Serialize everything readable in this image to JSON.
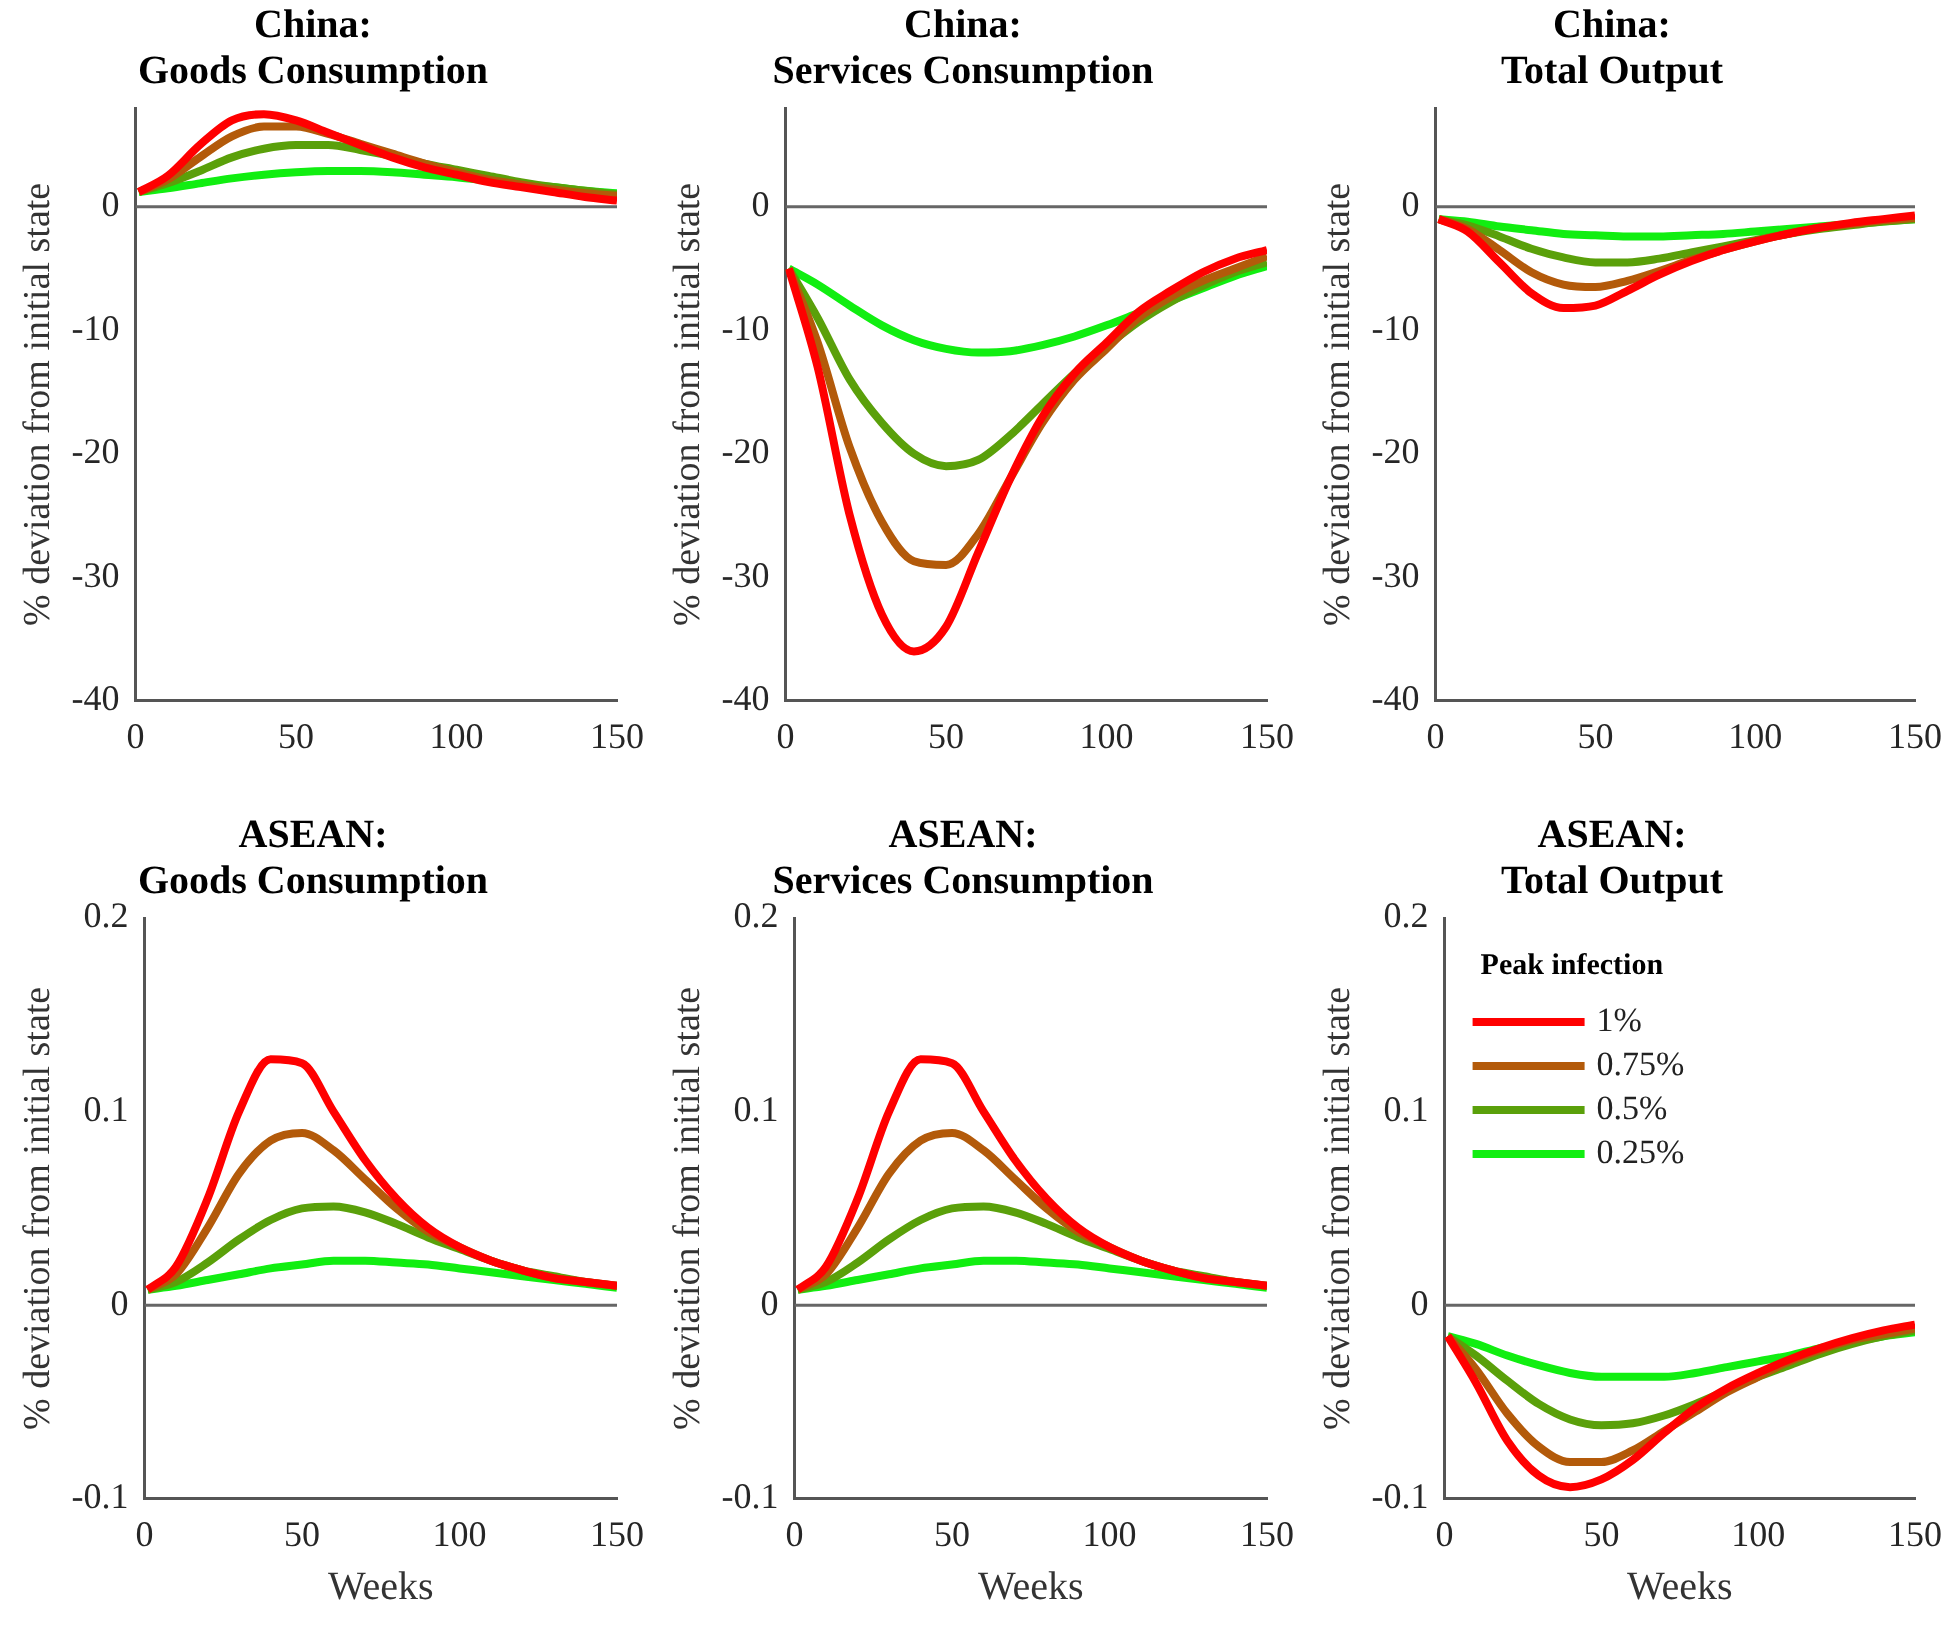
{
  "chart_data": [
    {
      "type": "line",
      "title": "China:\nGoods Consumption",
      "ylabel": "% deviation from initial state",
      "x": [
        1,
        10,
        20,
        30,
        40,
        50,
        60,
        70,
        80,
        90,
        100,
        110,
        120,
        130,
        140,
        150
      ],
      "xlim": [
        0,
        150
      ],
      "xticks": [
        0,
        50,
        100,
        150
      ],
      "ylim": [
        -40,
        8
      ],
      "yticks": [
        -40,
        -30,
        -20,
        -10,
        0
      ],
      "grid": false,
      "legend": false,
      "marker": "none",
      "ref_lines": [
        {
          "axis": "y",
          "value": 0,
          "color": "#666666"
        }
      ],
      "series": [
        {
          "color": "#ff0000",
          "values": [
            1.2,
            2.5,
            5,
            7,
            7.5,
            7,
            6,
            5,
            4,
            3.2,
            2.6,
            2,
            1.6,
            1.2,
            0.8,
            0.5
          ]
        },
        {
          "color": "#b35a0a",
          "values": [
            1.2,
            2.2,
            4,
            5.7,
            6.5,
            6.5,
            5.9,
            5.1,
            4.3,
            3.5,
            2.8,
            2.2,
            1.8,
            1.4,
            1.1,
            0.9
          ]
        },
        {
          "color": "#5aa00a",
          "values": [
            1.2,
            1.9,
            2.9,
            4,
            4.7,
            5,
            5,
            4.6,
            4.1,
            3.5,
            3,
            2.5,
            2,
            1.6,
            1.3,
            1
          ]
        },
        {
          "color": "#11ee11",
          "values": [
            1.2,
            1.5,
            1.9,
            2.3,
            2.6,
            2.8,
            2.9,
            2.9,
            2.8,
            2.6,
            2.4,
            2.1,
            1.8,
            1.6,
            1.3,
            1.1
          ]
        }
      ]
    },
    {
      "type": "line",
      "title": "China:\nServices Consumption",
      "ylabel": "% deviation from initial state",
      "x": [
        1,
        10,
        20,
        30,
        40,
        50,
        60,
        70,
        80,
        90,
        100,
        110,
        120,
        130,
        140,
        150
      ],
      "xlim": [
        0,
        150
      ],
      "xticks": [
        0,
        50,
        100,
        150
      ],
      "ylim": [
        -40,
        8
      ],
      "yticks": [
        -40,
        -30,
        -20,
        -10,
        0
      ],
      "grid": false,
      "legend": false,
      "marker": "none",
      "ref_lines": [
        {
          "axis": "y",
          "value": 0,
          "color": "#666666"
        }
      ],
      "series": [
        {
          "color": "#ff0000",
          "values": [
            -5,
            -13,
            -25,
            -33,
            -36,
            -34,
            -28,
            -22,
            -17,
            -13.5,
            -11,
            -8.5,
            -6.8,
            -5.3,
            -4.2,
            -3.5
          ]
        },
        {
          "color": "#b35a0a",
          "values": [
            -5,
            -11,
            -19.5,
            -25.5,
            -28.7,
            -29,
            -26.5,
            -22,
            -17.5,
            -14,
            -11.5,
            -9,
            -7.3,
            -6,
            -5,
            -4
          ]
        },
        {
          "color": "#5aa00a",
          "values": [
            -5,
            -9,
            -14,
            -17.5,
            -20,
            -21,
            -20.5,
            -18.5,
            -16,
            -13.5,
            -11.3,
            -9.3,
            -7.7,
            -6.4,
            -5.3,
            -4.5
          ]
        },
        {
          "color": "#11ee11",
          "values": [
            -5,
            -6.3,
            -8,
            -9.6,
            -10.8,
            -11.5,
            -11.8,
            -11.7,
            -11.2,
            -10.5,
            -9.6,
            -8.6,
            -7.6,
            -6.6,
            -5.6,
            -4.8
          ]
        }
      ]
    },
    {
      "type": "line",
      "title": "China:\nTotal Output",
      "ylabel": "% deviation from initial state",
      "x": [
        1,
        10,
        20,
        30,
        40,
        50,
        60,
        70,
        80,
        90,
        100,
        110,
        120,
        130,
        140,
        150
      ],
      "xlim": [
        0,
        150
      ],
      "xticks": [
        0,
        50,
        100,
        150
      ],
      "ylim": [
        -40,
        8
      ],
      "yticks": [
        -40,
        -30,
        -20,
        -10,
        0
      ],
      "grid": false,
      "legend": false,
      "marker": "none",
      "ref_lines": [
        {
          "axis": "y",
          "value": 0,
          "color": "#666666"
        }
      ],
      "series": [
        {
          "color": "#ff0000",
          "values": [
            -1,
            -2,
            -4.5,
            -7,
            -8.2,
            -8,
            -6.8,
            -5.5,
            -4.4,
            -3.5,
            -2.8,
            -2.2,
            -1.7,
            -1.3,
            -1,
            -0.7
          ]
        },
        {
          "color": "#b35a0a",
          "values": [
            -1,
            -1.8,
            -3.5,
            -5.3,
            -6.3,
            -6.5,
            -6,
            -5.2,
            -4.3,
            -3.5,
            -2.8,
            -2.2,
            -1.7,
            -1.4,
            -1.1,
            -0.9
          ]
        },
        {
          "color": "#5aa00a",
          "values": [
            -1,
            -1.5,
            -2.4,
            -3.4,
            -4.1,
            -4.5,
            -4.5,
            -4.2,
            -3.7,
            -3.2,
            -2.7,
            -2.2,
            -1.8,
            -1.5,
            -1.2,
            -1
          ]
        },
        {
          "color": "#11ee11",
          "values": [
            -1,
            -1.2,
            -1.6,
            -1.9,
            -2.2,
            -2.3,
            -2.4,
            -2.4,
            -2.3,
            -2.2,
            -2,
            -1.8,
            -1.6,
            -1.4,
            -1.2,
            -1
          ]
        }
      ]
    },
    {
      "type": "line",
      "title": "ASEAN:\nGoods Consumption",
      "xlabel": "Weeks",
      "ylabel": "% deviation from initial state",
      "x": [
        1,
        10,
        20,
        30,
        40,
        50,
        60,
        70,
        80,
        90,
        100,
        110,
        120,
        130,
        140,
        150
      ],
      "xlim": [
        0,
        150
      ],
      "xticks": [
        0,
        50,
        100,
        150
      ],
      "ylim": [
        -0.1,
        0.2
      ],
      "yticks": [
        -0.1,
        0,
        0.1,
        0.2
      ],
      "grid": false,
      "legend": false,
      "marker": "none",
      "ref_lines": [
        {
          "axis": "y",
          "value": 0,
          "color": "#666666"
        }
      ],
      "series": [
        {
          "color": "#ff0000",
          "values": [
            0.008,
            0.02,
            0.055,
            0.1,
            0.127,
            0.125,
            0.1,
            0.075,
            0.055,
            0.04,
            0.03,
            0.023,
            0.018,
            0.014,
            0.012,
            0.01
          ]
        },
        {
          "color": "#b35a0a",
          "values": [
            0.008,
            0.016,
            0.04,
            0.068,
            0.085,
            0.089,
            0.08,
            0.065,
            0.05,
            0.038,
            0.03,
            0.023,
            0.018,
            0.014,
            0.012,
            0.01
          ]
        },
        {
          "color": "#5aa00a",
          "values": [
            0.008,
            0.012,
            0.022,
            0.034,
            0.044,
            0.05,
            0.051,
            0.048,
            0.042,
            0.035,
            0.029,
            0.023,
            0.018,
            0.015,
            0.012,
            0.01
          ]
        },
        {
          "color": "#11ee11",
          "values": [
            0.008,
            0.01,
            0.013,
            0.016,
            0.019,
            0.021,
            0.023,
            0.023,
            0.022,
            0.021,
            0.019,
            0.017,
            0.015,
            0.013,
            0.011,
            0.009
          ]
        }
      ]
    },
    {
      "type": "line",
      "title": "ASEAN:\nServices Consumption",
      "xlabel": "Weeks",
      "ylabel": "% deviation from initial state",
      "x": [
        1,
        10,
        20,
        30,
        40,
        50,
        60,
        70,
        80,
        90,
        100,
        110,
        120,
        130,
        140,
        150
      ],
      "xlim": [
        0,
        150
      ],
      "xticks": [
        0,
        50,
        100,
        150
      ],
      "ylim": [
        -0.1,
        0.2
      ],
      "yticks": [
        -0.1,
        0,
        0.1,
        0.2
      ],
      "grid": false,
      "legend": false,
      "marker": "none",
      "ref_lines": [
        {
          "axis": "y",
          "value": 0,
          "color": "#666666"
        }
      ],
      "series": [
        {
          "color": "#ff0000",
          "values": [
            0.008,
            0.02,
            0.055,
            0.1,
            0.127,
            0.125,
            0.1,
            0.075,
            0.055,
            0.04,
            0.03,
            0.023,
            0.018,
            0.014,
            0.012,
            0.01
          ]
        },
        {
          "color": "#b35a0a",
          "values": [
            0.008,
            0.016,
            0.04,
            0.068,
            0.085,
            0.089,
            0.08,
            0.065,
            0.05,
            0.038,
            0.03,
            0.023,
            0.018,
            0.014,
            0.012,
            0.01
          ]
        },
        {
          "color": "#5aa00a",
          "values": [
            0.008,
            0.012,
            0.022,
            0.034,
            0.044,
            0.05,
            0.051,
            0.048,
            0.042,
            0.035,
            0.029,
            0.023,
            0.018,
            0.015,
            0.012,
            0.01
          ]
        },
        {
          "color": "#11ee11",
          "values": [
            0.008,
            0.01,
            0.013,
            0.016,
            0.019,
            0.021,
            0.023,
            0.023,
            0.022,
            0.021,
            0.019,
            0.017,
            0.015,
            0.013,
            0.011,
            0.009
          ]
        }
      ]
    },
    {
      "type": "line",
      "title": "ASEAN:\nTotal Output",
      "xlabel": "Weeks",
      "ylabel": "% deviation from initial state",
      "legend_title": "Peak infection",
      "x": [
        1,
        10,
        20,
        30,
        40,
        50,
        60,
        70,
        80,
        90,
        100,
        110,
        120,
        130,
        140,
        150
      ],
      "xlim": [
        0,
        150
      ],
      "xticks": [
        0,
        50,
        100,
        150
      ],
      "ylim": [
        -0.1,
        0.2
      ],
      "yticks": [
        -0.1,
        0,
        0.1,
        0.2
      ],
      "grid": false,
      "legend": "top left",
      "marker": "none",
      "ref_lines": [
        {
          "axis": "y",
          "value": 0,
          "color": "#666666"
        }
      ],
      "series": [
        {
          "name": "1%",
          "color": "#ff0000",
          "values": [
            -0.016,
            -0.04,
            -0.07,
            -0.088,
            -0.094,
            -0.09,
            -0.08,
            -0.066,
            -0.053,
            -0.043,
            -0.035,
            -0.028,
            -0.022,
            -0.017,
            -0.013,
            -0.01
          ]
        },
        {
          "name": "0.75%",
          "color": "#b35a0a",
          "values": [
            -0.016,
            -0.033,
            -0.056,
            -0.073,
            -0.081,
            -0.081,
            -0.075,
            -0.065,
            -0.055,
            -0.045,
            -0.037,
            -0.029,
            -0.023,
            -0.018,
            -0.015,
            -0.012
          ]
        },
        {
          "name": "0.5%",
          "color": "#5aa00a",
          "values": [
            -0.016,
            -0.026,
            -0.039,
            -0.051,
            -0.059,
            -0.062,
            -0.061,
            -0.057,
            -0.051,
            -0.044,
            -0.037,
            -0.031,
            -0.025,
            -0.02,
            -0.016,
            -0.013
          ]
        },
        {
          "name": "0.25%",
          "color": "#11ee11",
          "values": [
            -0.016,
            -0.02,
            -0.026,
            -0.031,
            -0.035,
            -0.037,
            -0.037,
            -0.037,
            -0.035,
            -0.032,
            -0.029,
            -0.026,
            -0.022,
            -0.019,
            -0.016,
            -0.014
          ]
        }
      ]
    }
  ]
}
